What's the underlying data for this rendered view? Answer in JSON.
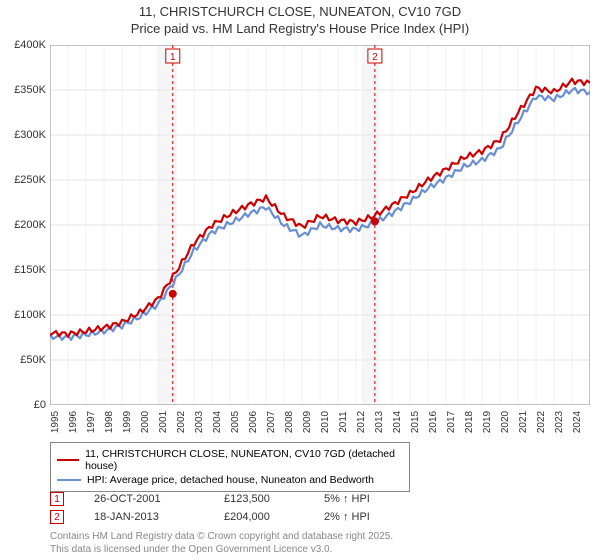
{
  "chart": {
    "type": "line",
    "title_line1": "11, CHRISTCHURCH CLOSE, NUNEATON, CV10 7GD",
    "title_line2": "Price paid vs. HM Land Registry's House Price Index (HPI)",
    "title_fontsize": 13,
    "title_color": "#333333",
    "background_color": "#ffffff",
    "plot_background": "#ffffff",
    "grid_color": "#e6e6e6",
    "axis_color": "#888888",
    "ylim": [
      0,
      400000
    ],
    "ytick_step": 50000,
    "y_tick_labels": [
      "£0",
      "£50K",
      "£100K",
      "£150K",
      "£200K",
      "£250K",
      "£300K",
      "£350K",
      "£400K"
    ],
    "x_years": [
      1995,
      1996,
      1997,
      1998,
      1999,
      2000,
      2001,
      2002,
      2003,
      2004,
      2005,
      2006,
      2007,
      2008,
      2009,
      2010,
      2011,
      2012,
      2013,
      2014,
      2015,
      2016,
      2017,
      2018,
      2019,
      2020,
      2021,
      2022,
      2023,
      2024
    ],
    "x_range": [
      1995,
      2025
    ],
    "line_width": 2.2,
    "series": [
      {
        "name": "property",
        "label": "11, CHRISTCHURCH CLOSE, NUNEATON, CV10 7GD (detached house)",
        "color": "#cc0000",
        "values_by_year": {
          "1995": 80000,
          "1996": 79000,
          "1997": 82000,
          "1998": 86000,
          "1999": 92000,
          "2000": 103000,
          "2001": 118000,
          "2002": 148000,
          "2003": 180000,
          "2004": 200000,
          "2005": 212000,
          "2006": 222000,
          "2007": 230000,
          "2008": 210000,
          "2009": 198000,
          "2010": 210000,
          "2011": 205000,
          "2012": 203000,
          "2013": 210000,
          "2014": 222000,
          "2015": 235000,
          "2016": 250000,
          "2017": 262000,
          "2018": 275000,
          "2019": 282000,
          "2020": 295000,
          "2021": 325000,
          "2022": 352000,
          "2023": 348000,
          "2024": 360000,
          "2025": 358000
        }
      },
      {
        "name": "hpi",
        "label": "HPI: Average price, detached house, Nuneaton and Bedworth",
        "color": "#6a8fd0",
        "values_by_year": {
          "1995": 76000,
          "1996": 75000,
          "1997": 78000,
          "1998": 82000,
          "1999": 88000,
          "2000": 98000,
          "2001": 112000,
          "2002": 140000,
          "2003": 172000,
          "2004": 192000,
          "2005": 202000,
          "2006": 212000,
          "2007": 220000,
          "2008": 200000,
          "2009": 188000,
          "2010": 200000,
          "2011": 196000,
          "2012": 195000,
          "2013": 202000,
          "2014": 213000,
          "2015": 226000,
          "2016": 241000,
          "2017": 252000,
          "2018": 265000,
          "2019": 272000,
          "2020": 285000,
          "2021": 315000,
          "2022": 343000,
          "2023": 340000,
          "2024": 350000,
          "2025": 348000
        }
      }
    ],
    "shaded_ranges": [
      {
        "start": 2001.0,
        "end": 2002.0,
        "color": "#f6f6f8"
      },
      {
        "start": 2012.3,
        "end": 2013.3,
        "color": "#f6f6f8"
      }
    ],
    "sale_markers": [
      {
        "badge": "1",
        "x": 2001.82,
        "y": 123500,
        "dash_color": "#cc0000"
      },
      {
        "badge": "2",
        "x": 2013.05,
        "y": 204000,
        "dash_color": "#cc0000"
      }
    ],
    "marker_radius": 4,
    "marker_fill": "#cc0000",
    "badge_border": "#cc0000",
    "badge_text_color": "#cc0000"
  },
  "legend": {
    "items": [
      {
        "color": "#cc0000",
        "label": "11, CHRISTCHURCH CLOSE, NUNEATON, CV10 7GD (detached house)"
      },
      {
        "color": "#6a8fd0",
        "label": "HPI: Average price, detached house, Nuneaton and Bedworth"
      }
    ]
  },
  "sales": [
    {
      "badge": "1",
      "date": "26-OCT-2001",
      "price": "£123,500",
      "hpi_delta": "5% ↑ HPI"
    },
    {
      "badge": "2",
      "date": "18-JAN-2013",
      "price": "£204,000",
      "hpi_delta": "2% ↑ HPI"
    }
  ],
  "attribution": {
    "line1": "Contains HM Land Registry data © Crown copyright and database right 2025.",
    "line2": "This data is licensed under the Open Government Licence v3.0."
  }
}
